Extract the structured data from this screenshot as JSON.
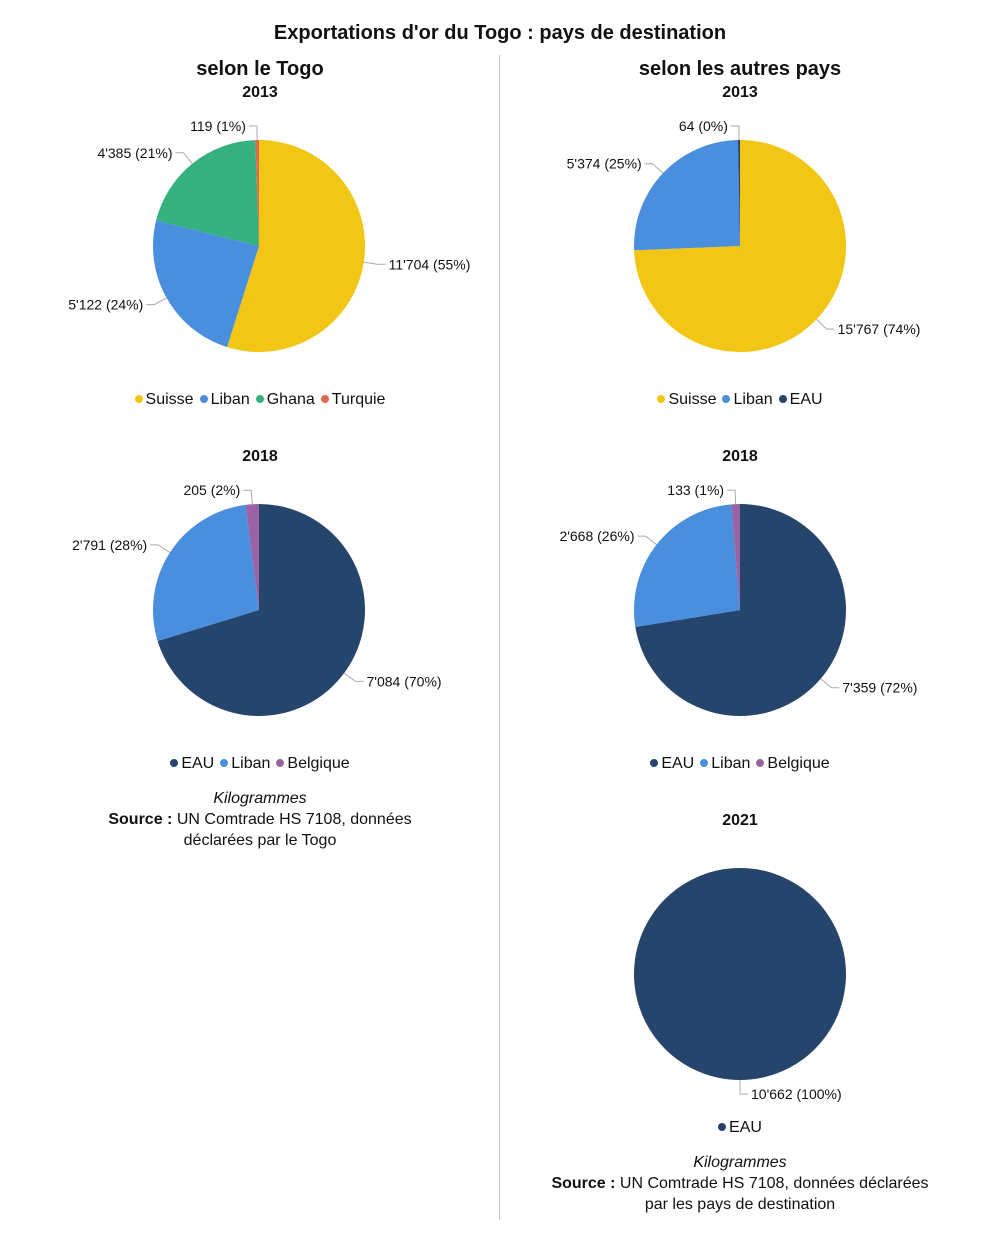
{
  "title": "Exportations d'or du Togo : pays de destination",
  "columns": {
    "left": {
      "title": "selon le Togo"
    },
    "right": {
      "title": "selon les autres pays"
    }
  },
  "colors": {
    "Suisse": "#f2c614",
    "Liban": "#4a8ede",
    "Ghana": "#35b07f",
    "Turquie": "#e06a4e",
    "EAU": "#26456c",
    "Belgique": "#9a63a6"
  },
  "chart_data": [
    {
      "type": "pie",
      "title": "2013",
      "slices": [
        {
          "name": "Suisse",
          "value": 11704,
          "label": "11'704 (55%)"
        },
        {
          "name": "Liban",
          "value": 5122,
          "label": "5'122 (24%)"
        },
        {
          "name": "Ghana",
          "value": 4385,
          "label": "4'385 (21%)"
        },
        {
          "name": "Turquie",
          "value": 119,
          "label": "119 (1%)"
        }
      ],
      "legend": [
        "Suisse",
        "Liban",
        "Ghana",
        "Turquie"
      ]
    },
    {
      "type": "pie",
      "title": "2018",
      "slices": [
        {
          "name": "EAU",
          "value": 7084,
          "label": "7'084 (70%)"
        },
        {
          "name": "Liban",
          "value": 2791,
          "label": "2'791 (28%)"
        },
        {
          "name": "Belgique",
          "value": 205,
          "label": "205 (2%)"
        }
      ],
      "legend": [
        "EAU",
        "Liban",
        "Belgique"
      ]
    },
    {
      "type": "pie",
      "title": "2013",
      "slices": [
        {
          "name": "Suisse",
          "value": 15767,
          "label": "15'767 (74%)"
        },
        {
          "name": "Liban",
          "value": 5374,
          "label": "5'374 (25%)"
        },
        {
          "name": "EAU",
          "value": 64,
          "label": "64 (0%)"
        }
      ],
      "legend": [
        "Suisse",
        "Liban",
        "EAU"
      ]
    },
    {
      "type": "pie",
      "title": "2018",
      "slices": [
        {
          "name": "EAU",
          "value": 7359,
          "label": "7'359 (72%)"
        },
        {
          "name": "Liban",
          "value": 2668,
          "label": "2'668 (26%)"
        },
        {
          "name": "Belgique",
          "value": 133,
          "label": "133 (1%)"
        }
      ],
      "legend": [
        "EAU",
        "Liban",
        "Belgique"
      ]
    },
    {
      "type": "pie",
      "title": "2021",
      "slices": [
        {
          "name": "EAU",
          "value": 10662,
          "label": "10'662 (100%)"
        }
      ],
      "legend": [
        "EAU"
      ]
    }
  ],
  "notes": {
    "left": {
      "unit": "Kilogrammes",
      "source_label": "Source :",
      "source_line1": "UN Comtrade HS 7108, données",
      "source_line2": "déclarées par le Togo"
    },
    "right": {
      "unit": "Kilogrammes",
      "source_label": "Source :",
      "source_line1": "UN Comtrade HS 7108, données déclarées",
      "source_line2": "par les pays de destination"
    }
  }
}
